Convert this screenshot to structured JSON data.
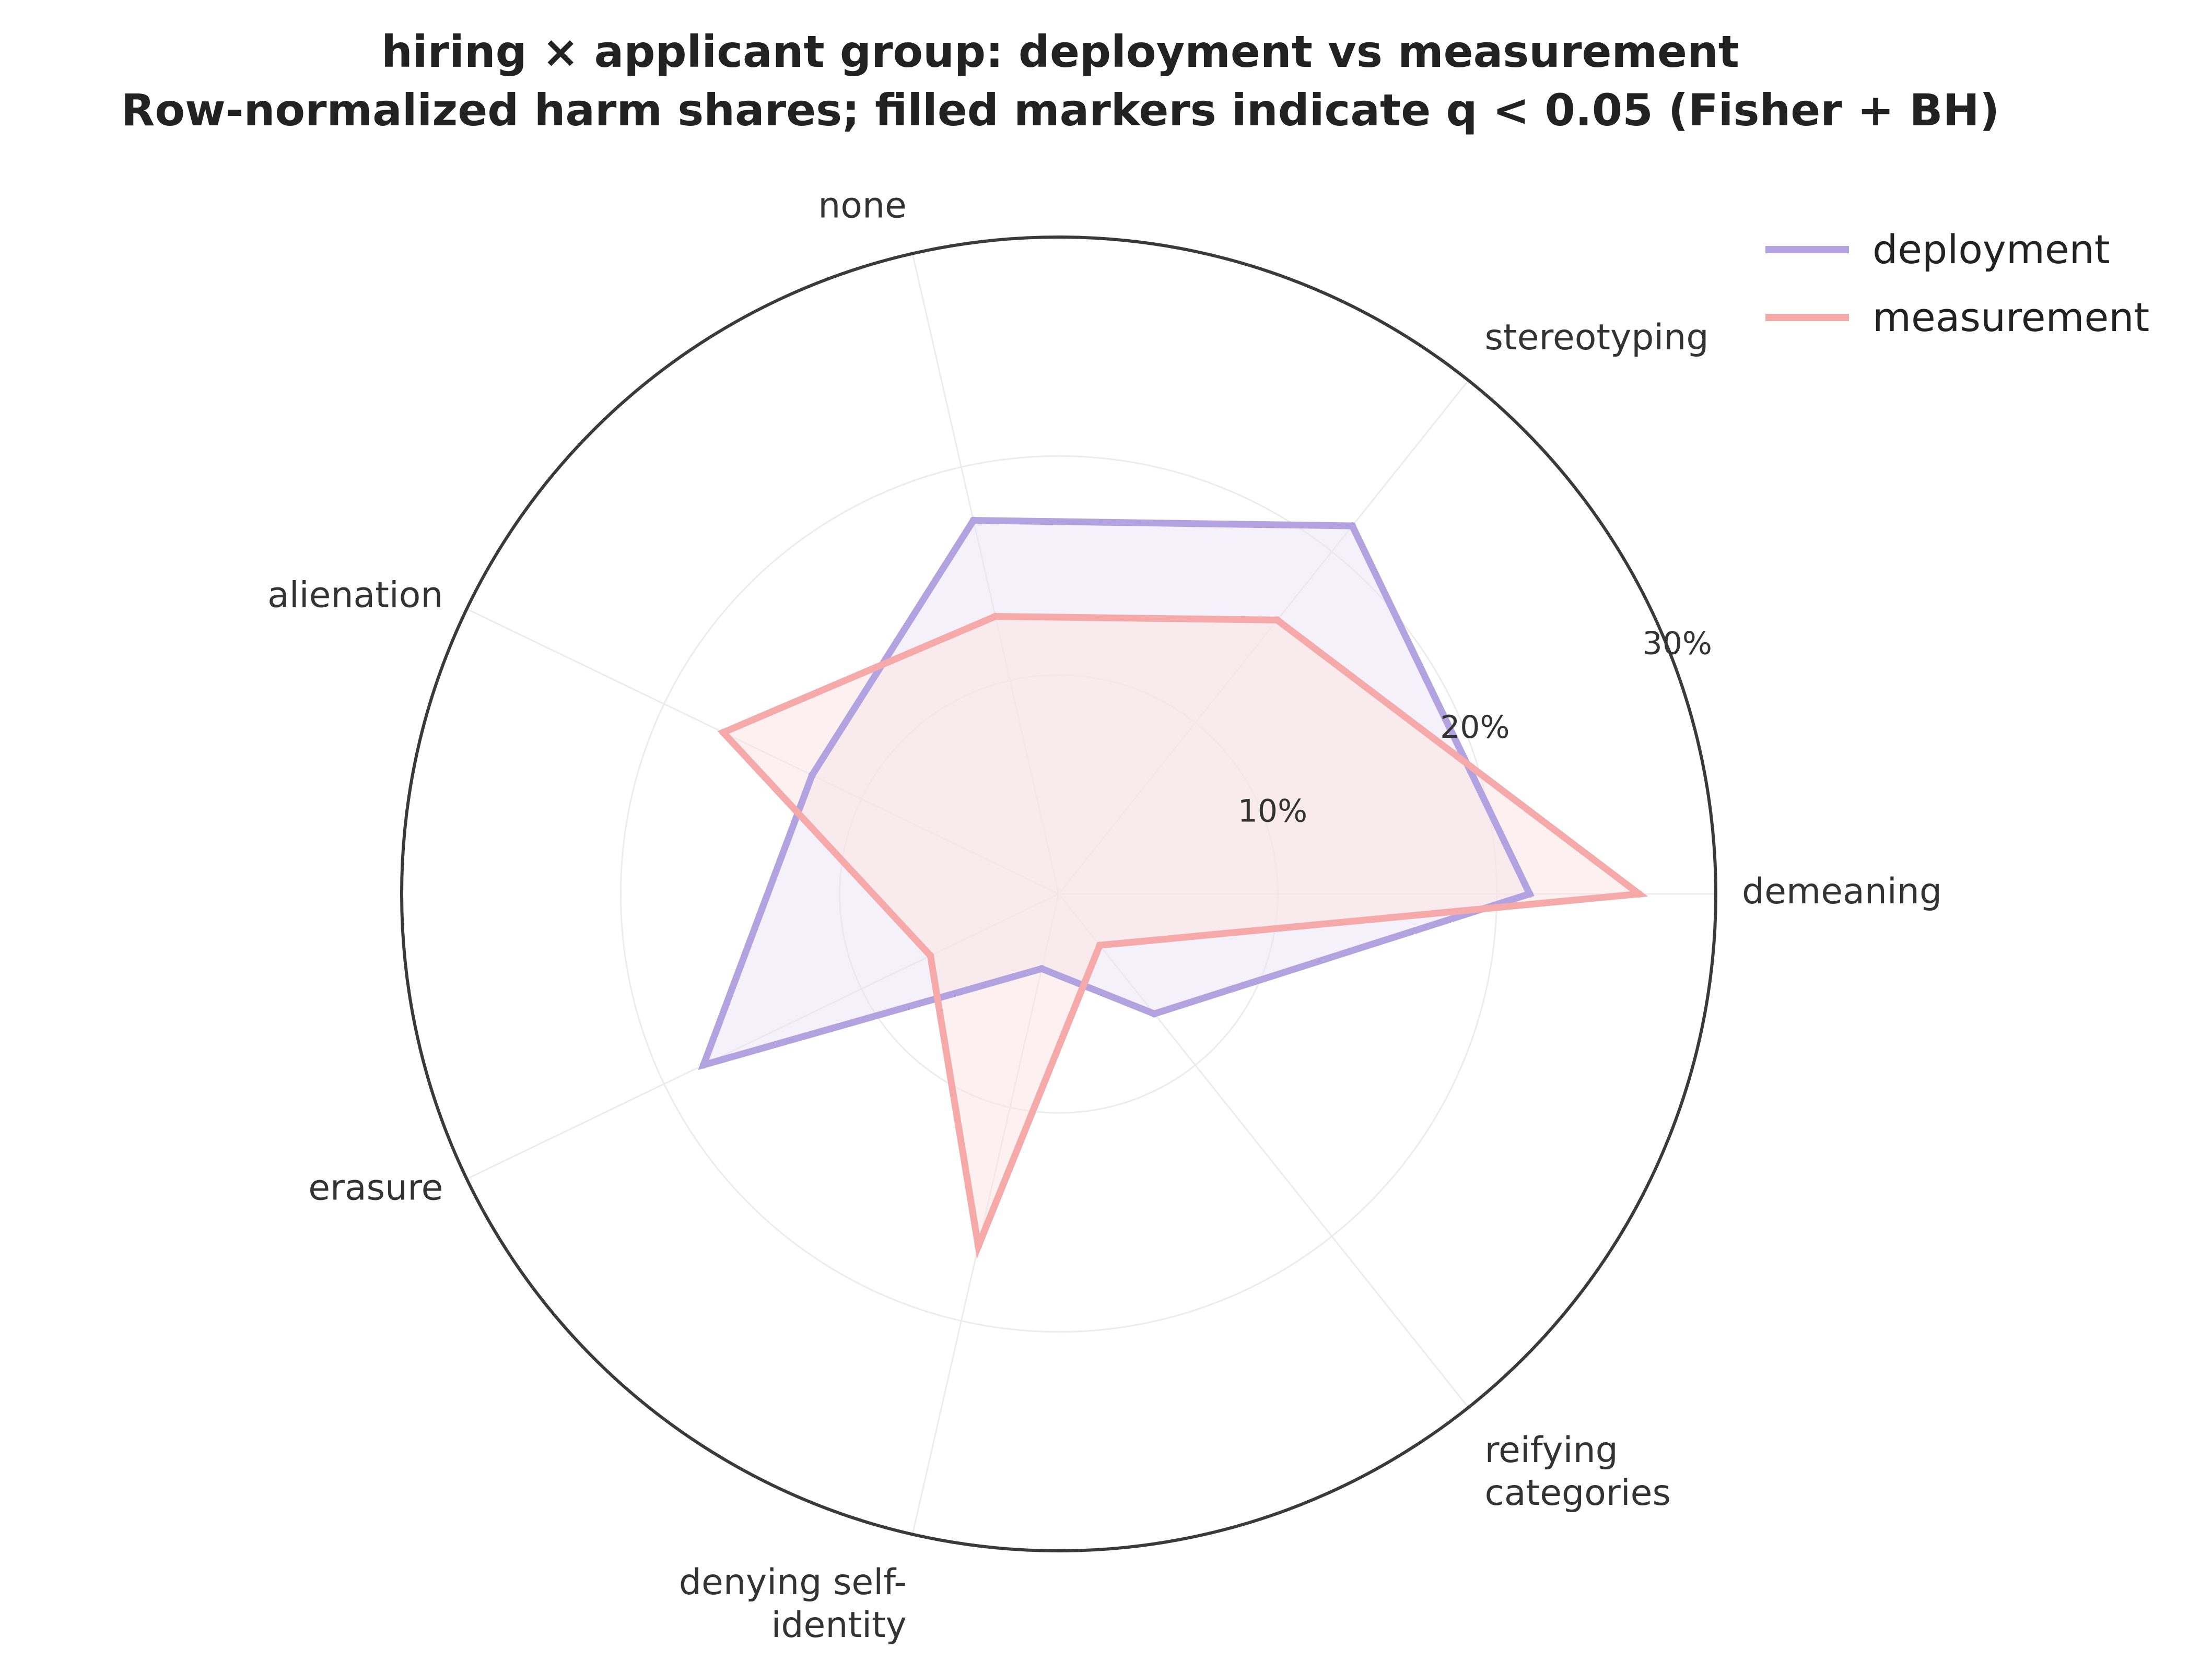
{
  "chart_data": {
    "type": "radar",
    "title": "hiring × applicant group: deployment vs measurement",
    "subtitle": "Row-normalized harm shares; filled markers indicate q < 0.05 (Fisher + BH)",
    "axes": [
      {
        "label_lines": [
          "demeaning"
        ]
      },
      {
        "label_lines": [
          "stereotyping"
        ]
      },
      {
        "label_lines": [
          "none"
        ]
      },
      {
        "label_lines": [
          "alienation"
        ]
      },
      {
        "label_lines": [
          "erasure"
        ]
      },
      {
        "label_lines": [
          "denying self-",
          "identity"
        ]
      },
      {
        "label_lines": [
          "reifying",
          "categories"
        ]
      }
    ],
    "radial_ticks": [
      {
        "value": 10,
        "label": "10%"
      },
      {
        "value": 20,
        "label": "20%"
      },
      {
        "value": 30,
        "label": "30%"
      }
    ],
    "rmax": 30,
    "grid": true,
    "legend_position": "top-right",
    "series": [
      {
        "name": "deployment",
        "color": "#b3a2e0",
        "fill": "#ece6f7",
        "values": [
          21.5,
          21.5,
          17.5,
          12.5,
          18.0,
          3.5,
          7.0
        ]
      },
      {
        "name": "measurement",
        "color": "#f5a9a9",
        "fill": "#fbe3e3",
        "values": [
          26.5,
          16.0,
          13.0,
          17.0,
          6.5,
          16.5,
          3.0
        ]
      }
    ]
  }
}
